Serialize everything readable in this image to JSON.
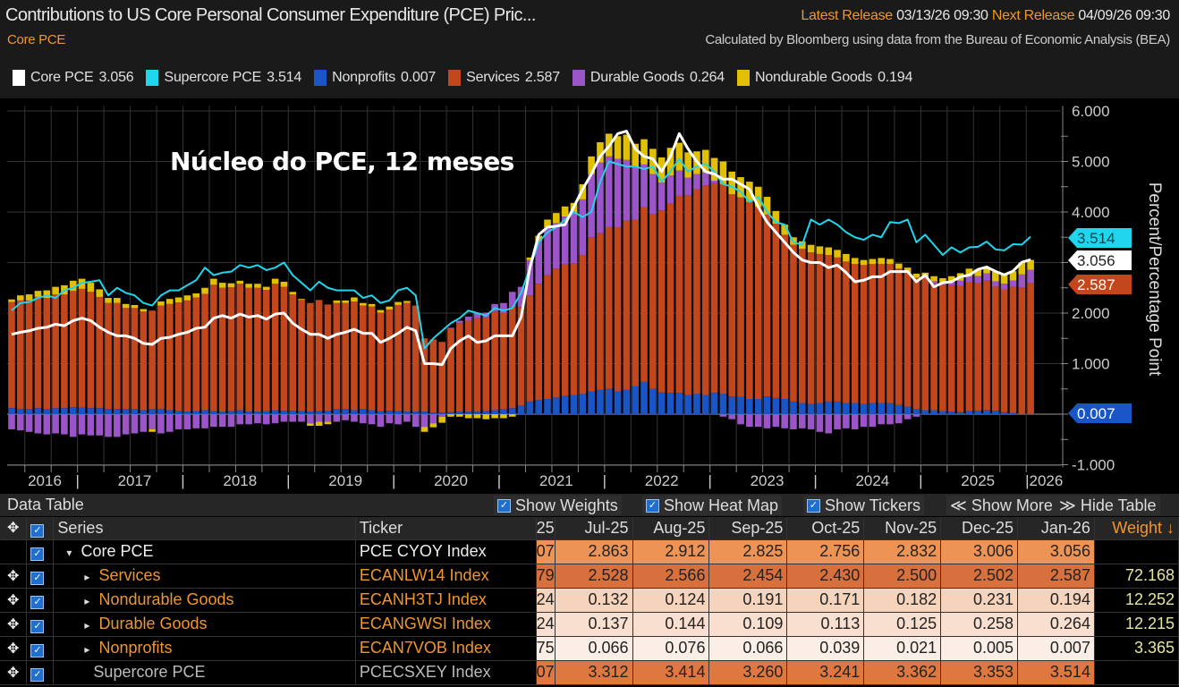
{
  "header": {
    "title": "Contributions to US Core Personal Consumer Expenditure (PCE) Pric...",
    "latest_release_label": "Latest Release",
    "latest_release": "03/13/26 09:30",
    "next_release_label": "Next Release",
    "next_release": "04/09/26 09:30",
    "subtitle": "Core PCE",
    "source": "Calculated by Bloomberg using data from the Bureau of Economic Analysis (BEA)"
  },
  "legend": [
    {
      "label": "Core PCE",
      "value": "3.056",
      "color": "#ffffff"
    },
    {
      "label": "Supercore PCE",
      "value": "3.514",
      "color": "#1fd6ec"
    },
    {
      "label": "Nonprofits",
      "value": "0.007",
      "color": "#1a55c8"
    },
    {
      "label": "Services",
      "value": "2.587",
      "color": "#c4461c"
    },
    {
      "label": "Durable Goods",
      "value": "0.264",
      "color": "#9b55c8"
    },
    {
      "label": "Nondurable Goods",
      "value": "0.194",
      "color": "#e0c000"
    }
  ],
  "annotation": "Núcleo do PCE, 12 meses",
  "chart_data": {
    "type": "bar",
    "stacked": true,
    "frequency": "monthly",
    "x_start": "2016-05",
    "x_end": "2026-01",
    "x_tick_labels": [
      "2016",
      "2017",
      "2018",
      "2019",
      "2020",
      "2021",
      "2022",
      "2023",
      "2024",
      "2025",
      "2026"
    ],
    "ylabel": "Percent/Percentage Point",
    "ylim": [
      -1,
      6
    ],
    "y_ticks": [
      "6.000",
      "5.000",
      "4.000",
      "3.000",
      "2.000",
      "1.000",
      "0.000",
      "-1.000"
    ],
    "y_tick_labels_shown": [
      "6.000",
      "5.000",
      "4.000",
      "2.000",
      "1.000",
      "-1.000"
    ],
    "grid": true,
    "last_value_tags": [
      {
        "value": "3.514",
        "color": "#1fd6ec",
        "text_color": "#0b3f48"
      },
      {
        "value": "3.056",
        "color": "#ffffff",
        "text_color": "#222222"
      },
      {
        "value": "2.587",
        "color": "#c4461c",
        "text_color": "#ffffff"
      },
      {
        "value": "0.007",
        "color": "#1a55c8",
        "text_color": "#ffffff"
      }
    ],
    "bar_series": [
      {
        "name": "Nonprofits",
        "color": "#1a55c8",
        "values": [
          0.12,
          0.1,
          0.1,
          0.12,
          0.1,
          0.12,
          0.12,
          0.14,
          0.13,
          0.12,
          0.12,
          0.1,
          0.1,
          0.1,
          0.1,
          0.08,
          0.1,
          0.1,
          0.08,
          0.06,
          0.05,
          0.06,
          0.08,
          0.06,
          0.05,
          0.06,
          0.08,
          0.05,
          0.05,
          0.06,
          0.08,
          0.07,
          0.07,
          0.06,
          0.05,
          0.06,
          0.07,
          0.1,
          0.1,
          0.08,
          0.1,
          0.08,
          0.06,
          0.07,
          0.06,
          0.05,
          0.05,
          0.05,
          0.03,
          0.03,
          0.04,
          0.05,
          0.05,
          0.05,
          0.06,
          0.08,
          0.1,
          0.12,
          0.17,
          0.25,
          0.28,
          0.3,
          0.33,
          0.36,
          0.38,
          0.4,
          0.45,
          0.48,
          0.5,
          0.45,
          0.48,
          0.55,
          0.64,
          0.5,
          0.43,
          0.42,
          0.42,
          0.38,
          0.4,
          0.38,
          0.42,
          0.4,
          0.35,
          0.34,
          0.3,
          0.3,
          0.35,
          0.32,
          0.3,
          0.25,
          0.22,
          0.2,
          0.22,
          0.25,
          0.25,
          0.22,
          0.22,
          0.2,
          0.22,
          0.22,
          0.22,
          0.18,
          0.15,
          0.1,
          0.08,
          0.08,
          0.06,
          0.05,
          0.04,
          0.06,
          0.066,
          0.076,
          0.066,
          0.039,
          0.021,
          0.005,
          0.007
        ]
      },
      {
        "name": "Services",
        "color": "#c4461c",
        "values": [
          2.1,
          2.15,
          2.15,
          2.2,
          2.2,
          2.25,
          2.25,
          2.3,
          2.35,
          2.3,
          2.2,
          2.1,
          2.1,
          2.0,
          2.0,
          1.95,
          1.95,
          2.05,
          2.1,
          2.15,
          2.2,
          2.25,
          2.3,
          2.5,
          2.45,
          2.45,
          2.5,
          2.45,
          2.45,
          2.4,
          2.5,
          2.45,
          2.3,
          2.2,
          2.15,
          2.2,
          2.1,
          2.1,
          2.1,
          2.15,
          2.05,
          2.05,
          1.95,
          2.0,
          2.1,
          2.15,
          2.1,
          1.45,
          1.45,
          1.4,
          1.65,
          1.75,
          1.8,
          1.85,
          1.85,
          1.95,
          1.9,
          2.0,
          1.95,
          2.1,
          2.3,
          2.45,
          2.55,
          2.6,
          2.6,
          2.75,
          3.05,
          3.1,
          3.2,
          3.25,
          3.35,
          3.3,
          3.45,
          3.45,
          3.6,
          3.75,
          3.9,
          3.95,
          4.05,
          4.15,
          4.15,
          4.15,
          4.0,
          3.95,
          3.9,
          3.8,
          3.6,
          3.45,
          3.25,
          3.1,
          3.05,
          3.0,
          2.95,
          2.9,
          2.85,
          2.8,
          2.75,
          2.75,
          2.75,
          2.75,
          2.75,
          2.7,
          2.65,
          2.6,
          2.6,
          2.5,
          2.5,
          2.5,
          2.5,
          2.55,
          2.528,
          2.566,
          2.454,
          2.43,
          2.5,
          2.502,
          2.587
        ]
      },
      {
        "name": "Durable Goods",
        "color": "#9b55c8",
        "values": [
          -0.3,
          -0.32,
          -0.35,
          -0.38,
          -0.4,
          -0.38,
          -0.4,
          -0.45,
          -0.4,
          -0.42,
          -0.42,
          -0.45,
          -0.45,
          -0.4,
          -0.38,
          -0.35,
          -0.3,
          -0.38,
          -0.35,
          -0.3,
          -0.3,
          -0.28,
          -0.28,
          -0.25,
          -0.25,
          -0.25,
          -0.2,
          -0.2,
          -0.18,
          -0.2,
          -0.18,
          -0.15,
          -0.15,
          -0.15,
          -0.18,
          -0.15,
          -0.15,
          -0.15,
          -0.12,
          -0.15,
          -0.18,
          -0.2,
          -0.25,
          -0.18,
          -0.2,
          -0.15,
          -0.25,
          -0.25,
          -0.18,
          -0.05,
          0.02,
          0.05,
          0.08,
          0.1,
          0.1,
          0.15,
          0.2,
          0.3,
          0.4,
          0.7,
          0.85,
          0.95,
          0.9,
          0.95,
          1.0,
          1.1,
          1.25,
          1.4,
          1.4,
          1.35,
          1.2,
          1.05,
          0.85,
          0.8,
          0.55,
          0.55,
          0.5,
          0.35,
          0.3,
          0.25,
          0.05,
          -0.05,
          -0.1,
          -0.2,
          -0.25,
          -0.25,
          -0.28,
          -0.25,
          -0.28,
          -0.3,
          -0.28,
          -0.3,
          -0.35,
          -0.38,
          -0.3,
          -0.28,
          -0.3,
          -0.25,
          -0.25,
          -0.2,
          -0.2,
          -0.18,
          -0.1,
          -0.05,
          0.02,
          0.05,
          0.05,
          0.08,
          0.1,
          0.12,
          0.137,
          0.144,
          0.109,
          0.113,
          0.125,
          0.258,
          0.264
        ]
      },
      {
        "name": "Nondurable Goods",
        "color": "#e0c000",
        "values": [
          0.05,
          0.1,
          0.12,
          0.12,
          0.15,
          0.15,
          0.18,
          0.2,
          0.2,
          0.18,
          0.15,
          0.1,
          0.1,
          0.08,
          0.06,
          0.05,
          -0.05,
          0.08,
          0.1,
          0.1,
          0.1,
          0.08,
          0.12,
          0.12,
          0.1,
          0.08,
          0.06,
          0.08,
          0.08,
          0.06,
          0.1,
          0.1,
          0.05,
          0.02,
          -0.05,
          -0.08,
          -0.05,
          0.05,
          0.05,
          0.08,
          0.05,
          0.05,
          0.05,
          0.06,
          0.06,
          0.04,
          0.0,
          -0.1,
          -0.08,
          -0.12,
          -0.05,
          -0.05,
          -0.08,
          -0.08,
          -0.1,
          -0.08,
          -0.08,
          -0.05,
          0.0,
          0.05,
          0.1,
          0.15,
          0.2,
          0.2,
          0.2,
          0.3,
          0.35,
          0.4,
          0.45,
          0.45,
          0.5,
          0.45,
          0.5,
          0.5,
          0.5,
          0.55,
          0.55,
          0.5,
          0.45,
          0.45,
          0.45,
          0.45,
          0.45,
          0.4,
          0.4,
          0.4,
          0.35,
          0.25,
          0.2,
          0.15,
          0.15,
          0.15,
          0.15,
          0.15,
          0.15,
          0.15,
          0.12,
          0.1,
          0.1,
          0.12,
          0.1,
          0.1,
          0.1,
          0.08,
          0.1,
          0.1,
          0.08,
          0.1,
          0.15,
          0.15,
          0.132,
          0.124,
          0.191,
          0.171,
          0.182,
          0.231,
          0.194
        ]
      }
    ],
    "line_series": [
      {
        "name": "Supercore PCE",
        "color": "#1fd6ec",
        "values": [
          2.05,
          2.2,
          2.22,
          2.3,
          2.35,
          2.3,
          2.45,
          2.5,
          2.6,
          2.62,
          2.65,
          2.35,
          2.5,
          2.4,
          2.35,
          2.2,
          2.15,
          2.35,
          2.45,
          2.45,
          2.55,
          2.65,
          2.9,
          2.75,
          2.8,
          2.82,
          2.95,
          2.9,
          2.95,
          2.85,
          2.9,
          3.0,
          2.75,
          2.6,
          2.45,
          2.62,
          2.5,
          2.45,
          2.45,
          2.45,
          2.3,
          2.35,
          2.2,
          2.25,
          2.45,
          2.5,
          2.35,
          1.3,
          1.5,
          1.65,
          1.8,
          1.9,
          2.05,
          2.0,
          1.95,
          2.1,
          2.05,
          2.1,
          2.4,
          2.9,
          3.4,
          3.6,
          3.7,
          3.85,
          4.0,
          3.9,
          4.0,
          4.6,
          5.0,
          4.95,
          4.9,
          4.9,
          4.85,
          4.9,
          4.6,
          4.8,
          5.05,
          4.8,
          4.9,
          4.95,
          4.8,
          4.55,
          4.5,
          4.4,
          4.2,
          4.3,
          4.0,
          3.8,
          3.75,
          3.4,
          3.35,
          3.85,
          3.75,
          3.85,
          3.75,
          3.6,
          3.5,
          3.45,
          3.55,
          3.5,
          3.8,
          3.78,
          3.85,
          3.4,
          3.55,
          3.35,
          3.15,
          3.3,
          3.2,
          3.3,
          3.312,
          3.414,
          3.26,
          3.241,
          3.362,
          3.353,
          3.514
        ]
      },
      {
        "name": "Core PCE",
        "color": "#ffffff",
        "values": [
          1.58,
          1.62,
          1.65,
          1.7,
          1.72,
          1.78,
          1.75,
          1.85,
          1.9,
          1.85,
          1.72,
          1.62,
          1.55,
          1.55,
          1.5,
          1.4,
          1.38,
          1.5,
          1.52,
          1.58,
          1.62,
          1.7,
          1.72,
          1.9,
          1.95,
          1.9,
          1.98,
          1.92,
          1.95,
          1.88,
          1.98,
          2.0,
          1.8,
          1.68,
          1.58,
          1.58,
          1.5,
          1.58,
          1.62,
          1.68,
          1.6,
          1.6,
          1.42,
          1.5,
          1.6,
          1.72,
          1.65,
          1.0,
          1.0,
          0.98,
          1.3,
          1.45,
          1.55,
          1.42,
          1.45,
          1.55,
          1.55,
          1.55,
          1.92,
          2.9,
          3.55,
          3.7,
          3.72,
          3.75,
          4.1,
          4.45,
          4.75,
          5.1,
          5.3,
          5.55,
          5.6,
          5.25,
          5.1,
          5.05,
          4.8,
          5.1,
          5.55,
          5.25,
          5.0,
          4.8,
          4.75,
          4.65,
          4.65,
          4.55,
          4.45,
          4.1,
          3.8,
          3.6,
          3.4,
          3.2,
          3.05,
          3.0,
          3.0,
          2.9,
          2.95,
          2.8,
          2.62,
          2.65,
          2.72,
          2.72,
          2.82,
          2.82,
          2.82,
          2.62,
          2.75,
          2.52,
          2.6,
          2.62,
          2.72,
          2.75,
          2.863,
          2.912,
          2.825,
          2.756,
          2.832,
          3.006,
          3.056
        ]
      }
    ]
  },
  "data_table": {
    "title": "Data Table",
    "toggles": [
      {
        "label": "Show Weights",
        "checked": true
      },
      {
        "label": "Show Heat Map",
        "checked": true
      },
      {
        "label": "Show Tickers",
        "checked": true
      }
    ],
    "show_more": "Show More",
    "hide_table": "Hide Table",
    "columns": {
      "series": "Series",
      "ticker": "Ticker",
      "partial": "25",
      "months": [
        "Jul-25",
        "Aug-25",
        "Sep-25",
        "Oct-25",
        "Nov-25",
        "Dec-25",
        "Jan-26"
      ],
      "weight": "Weight ↓"
    },
    "rows": [
      {
        "series": "Core PCE",
        "ticker": "PCE CYOY Index",
        "partial": "07",
        "values": [
          "2.863",
          "2.912",
          "2.825",
          "2.756",
          "2.832",
          "3.006",
          "3.056"
        ],
        "weight": "",
        "style": "w",
        "expander": "▾",
        "heat": "#ee9356"
      },
      {
        "series": "Services",
        "ticker": "ECANLW14 Index",
        "partial": "79",
        "values": [
          "2.528",
          "2.566",
          "2.454",
          "2.430",
          "2.500",
          "2.502",
          "2.587"
        ],
        "weight": "72.168",
        "style": "o",
        "expander": "▸",
        "heat": "#d8703e"
      },
      {
        "series": "Nondurable Goods",
        "ticker": "ECANH3TJ Index",
        "partial": "24",
        "values": [
          "0.132",
          "0.124",
          "0.191",
          "0.171",
          "0.182",
          "0.231",
          "0.194"
        ],
        "weight": "12.252",
        "style": "o",
        "expander": "▸",
        "heat": "#f6d3bb"
      },
      {
        "series": "Durable Goods",
        "ticker": "ECANGWSI Index",
        "partial": "24",
        "values": [
          "0.137",
          "0.144",
          "0.109",
          "0.113",
          "0.125",
          "0.258",
          "0.264"
        ],
        "weight": "12.215",
        "style": "o",
        "expander": "▸",
        "heat": "#f8dfcf"
      },
      {
        "series": "Nonprofits",
        "ticker": "ECAN7VOB Index",
        "partial": "75",
        "values": [
          "0.066",
          "0.076",
          "0.066",
          "0.039",
          "0.021",
          "0.005",
          "0.007"
        ],
        "weight": "3.365",
        "style": "o",
        "expander": "▸",
        "heat": "#fbeee6"
      },
      {
        "series": "Supercore PCE",
        "ticker": "PCECSXEY Index",
        "partial": "07",
        "values": [
          "3.312",
          "3.414",
          "3.260",
          "3.241",
          "3.362",
          "3.353",
          "3.514"
        ],
        "weight": "",
        "style": "g",
        "expander": "",
        "heat": "#df7840"
      }
    ]
  }
}
